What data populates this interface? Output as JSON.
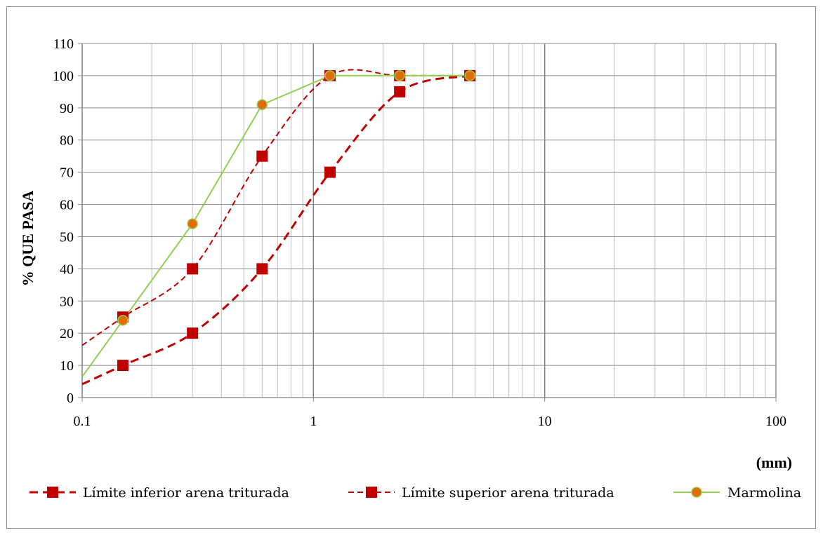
{
  "chart_data": {
    "type": "line",
    "title": "",
    "xlabel": "(mm)",
    "ylabel": "% QUE PASA",
    "xscale": "log",
    "xlim": [
      0.1,
      100
    ],
    "ylim": [
      0,
      110
    ],
    "x_ticks": [
      "0.1",
      "1",
      "10",
      "100"
    ],
    "y_ticks": [
      "0",
      "10",
      "20",
      "30",
      "40",
      "50",
      "60",
      "70",
      "80",
      "90",
      "100",
      "110"
    ],
    "grid": true,
    "legend_position": "bottom",
    "colors": {
      "limits": "#c00000",
      "marker_fill": "#c00000",
      "marmolina_line": "#92d050",
      "marmolina_marker": "#e36c09"
    },
    "series": [
      {
        "name": "Límite inferior arena triturada",
        "style": "dashed-thick",
        "x": [
          0.15,
          0.3,
          0.6,
          1.18,
          2.36,
          4.75
        ],
        "y": [
          10,
          20,
          40,
          70,
          95,
          100
        ]
      },
      {
        "name": "Límite superior arena triturada",
        "style": "dashed-thin",
        "x": [
          0.15,
          0.3,
          0.6,
          1.18,
          2.36,
          4.75
        ],
        "y": [
          25,
          40,
          75,
          100,
          100,
          100
        ]
      },
      {
        "name": "Marmolina",
        "style": "solid",
        "x": [
          0.15,
          0.3,
          0.6,
          1.18,
          2.36,
          4.75
        ],
        "y": [
          24,
          54,
          91,
          100,
          100,
          100
        ]
      }
    ]
  }
}
